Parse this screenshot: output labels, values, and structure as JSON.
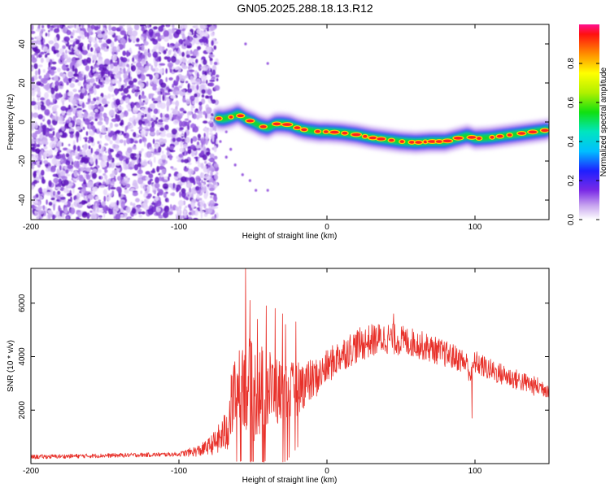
{
  "figure_title": "GN05.2025.288.18.13.R12",
  "colors": {
    "trace": "#e8312a",
    "axis": "#000000",
    "scatter": "#8a4ad8"
  },
  "chart_data": [
    {
      "type": "heatmap",
      "title": "GN05.2025.288.18.13.R12",
      "xlabel": "Height of straight line (km)",
      "ylabel": "Frequency (Hz)",
      "xlim": [
        -200,
        150
      ],
      "ylim": [
        -50,
        50
      ],
      "xticks": [
        -200,
        -100,
        0,
        100
      ],
      "yticks": [
        -40,
        -20,
        0,
        20,
        40
      ],
      "ridge": {
        "x": [
          -75,
          -70,
          -65,
          -60,
          -55,
          -50,
          -45,
          -40,
          -35,
          -30,
          -25,
          -20,
          -15,
          -10,
          -5,
          0,
          10,
          20,
          30,
          40,
          50,
          60,
          70,
          80,
          90,
          95,
          100,
          110,
          120,
          130,
          140,
          150
        ],
        "y": [
          2,
          1.5,
          2.5,
          4,
          1.5,
          0,
          -2,
          -3,
          -1,
          -1,
          -1.5,
          -3,
          -4,
          -4.5,
          -5,
          -5,
          -5.5,
          -6.5,
          -8,
          -9,
          -10,
          -10.5,
          -10,
          -10,
          -8,
          -7,
          -8.5,
          -8,
          -7,
          -6,
          -5,
          -4
        ]
      },
      "colorbar": {
        "label": "Normalized spectral amplitude",
        "range": [
          0,
          1
        ],
        "ticks": [
          "0.0",
          "0.2",
          "0.4",
          "0.6",
          "0.8"
        ],
        "tick_values": [
          0,
          0.2,
          0.4,
          0.6,
          0.8
        ]
      }
    },
    {
      "type": "line",
      "title": "",
      "xlabel": "Height of straight line (km)",
      "ylabel": "SNR (10 * v/v)",
      "xlim": [
        -200,
        150
      ],
      "ylim": [
        0,
        7300
      ],
      "xticks": [
        -200,
        -100,
        0,
        100
      ],
      "yticks": [
        2000,
        4000,
        6000
      ],
      "series": [
        {
          "name": "SNR",
          "envelope": {
            "x": [
              -200,
              -150,
              -100,
              -85,
              -75,
              -68,
              -62,
              -58,
              -55,
              -50,
              -45,
              -40,
              -35,
              -30,
              -25,
              -20,
              -15,
              -10,
              -5,
              0,
              10,
              20,
              30,
              40,
              50,
              60,
              70,
              80,
              90,
              95,
              97,
              100,
              110,
              120,
              130,
              140,
              150
            ],
            "y": [
              250,
              300,
              350,
              500,
              800,
              1200,
              2800,
              3400,
              3100,
              2600,
              2700,
              2800,
              2700,
              2600,
              2700,
              2800,
              3000,
              3100,
              3300,
              3600,
              4100,
              4400,
              4600,
              4700,
              4600,
              4500,
              4300,
              4100,
              3900,
              3700,
              3300,
              3800,
              3500,
              3300,
              3100,
              2900,
              2800
            ]
          },
          "noise_amplitude": {
            "x": [
              -200,
              -100,
              -80,
              -70,
              -62,
              -55,
              -45,
              -35,
              -25,
              -15,
              -5,
              0,
              20,
              40,
              60,
              80,
              100,
              150
            ],
            "y": [
              80,
              80,
              300,
              700,
              1600,
              1900,
              1800,
              1400,
              1100,
              900,
              700,
              650,
              650,
              600,
              550,
              500,
              450,
              350
            ]
          },
          "spikes": [
            {
              "x": -55,
              "y": 7300
            },
            {
              "x": -52,
              "y": 6100
            },
            {
              "x": -47,
              "y": 5400
            },
            {
              "x": -41,
              "y": 5900
            },
            {
              "x": -35,
              "y": 5800
            },
            {
              "x": -30,
              "y": 5600
            },
            {
              "x": -28,
              "y": 5200
            },
            {
              "x": -21,
              "y": 5300
            },
            {
              "x": 45,
              "y": 5600
            },
            {
              "x": 98,
              "y": 1700
            }
          ]
        }
      ]
    }
  ]
}
